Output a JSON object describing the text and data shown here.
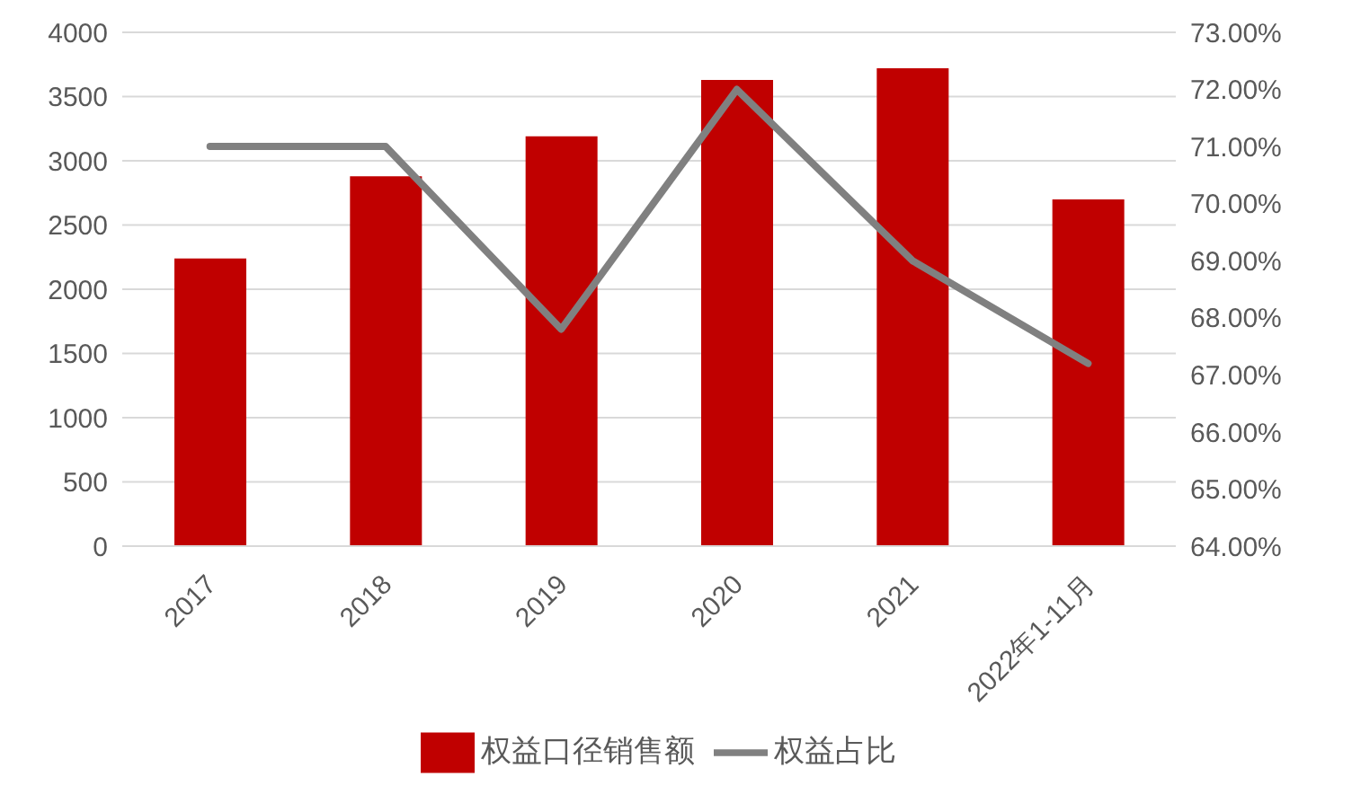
{
  "chart_data": {
    "type": "bar",
    "categories": [
      "2017",
      "2018",
      "2019",
      "2020",
      "2021",
      "2022年1-11月"
    ],
    "series": [
      {
        "name": "权益口径销售额",
        "color": "#c00000",
        "values": [
          2240,
          2880,
          3190,
          3630,
          3720,
          2700
        ]
      },
      {
        "name": "权益占比",
        "type": "line",
        "axis": "y2",
        "color": "#808080",
        "values": [
          71.0,
          71.0,
          67.8,
          72.0,
          69.0,
          67.2
        ]
      }
    ],
    "ylim": [
      0,
      4000
    ],
    "yticks": [
      0,
      500,
      1000,
      1500,
      2000,
      2500,
      3000,
      3500,
      4000
    ],
    "y2lim": [
      64,
      73
    ],
    "y2ticks": [
      {
        "value": 64,
        "label": "64.00%"
      },
      {
        "value": 65,
        "label": "65.00%"
      },
      {
        "value": 66,
        "label": "66.00%"
      },
      {
        "value": 67,
        "label": "67.00%"
      },
      {
        "value": 68,
        "label": "68.00%"
      },
      {
        "value": 69,
        "label": "69.00%"
      },
      {
        "value": 70,
        "label": "70.00%"
      },
      {
        "value": 71,
        "label": "71.00%"
      },
      {
        "value": 72,
        "label": "72.00%"
      },
      {
        "value": 73,
        "label": "73.00%"
      }
    ],
    "grid": "y",
    "legend": "bottom",
    "marker": "none"
  }
}
